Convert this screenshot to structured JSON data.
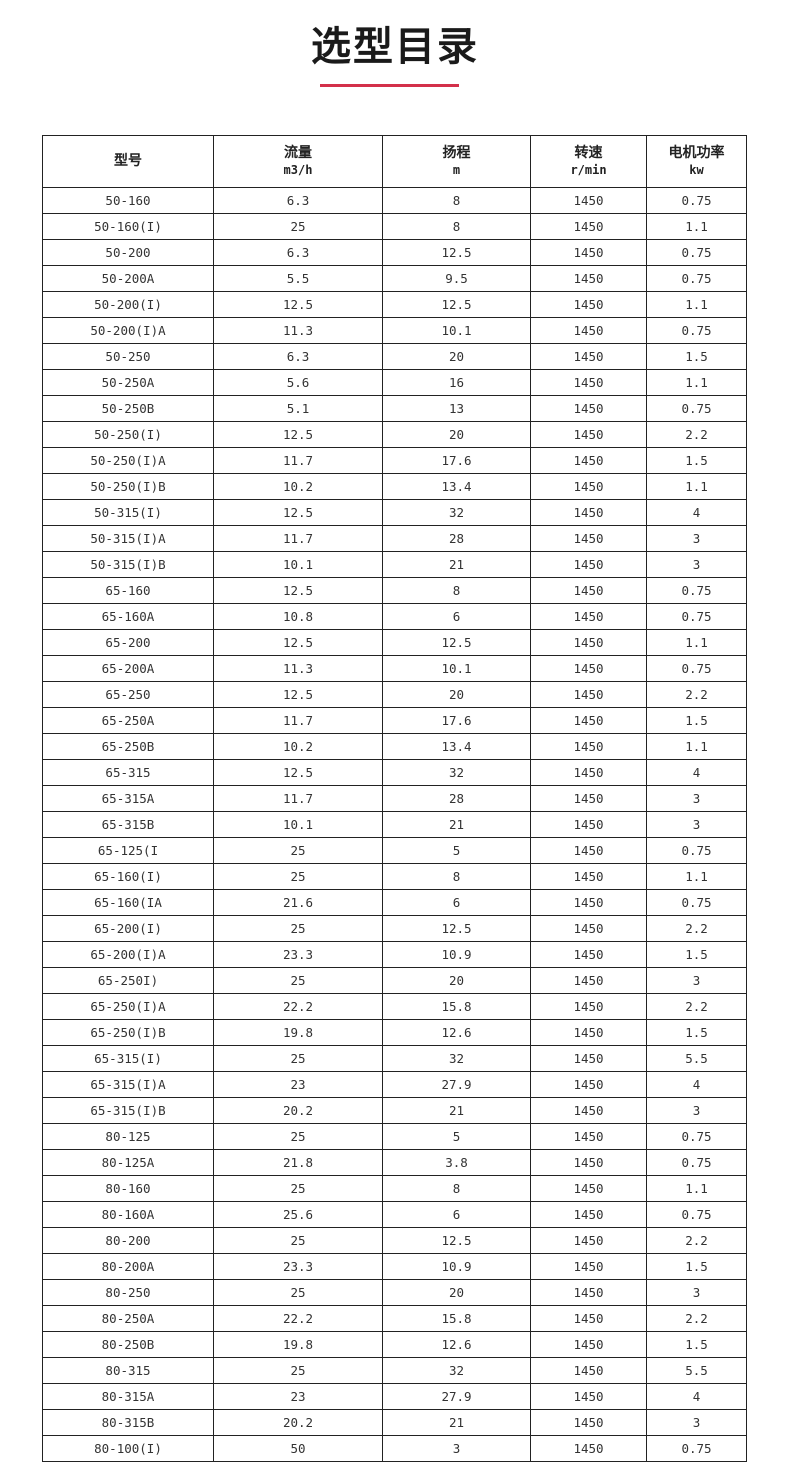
{
  "page": {
    "title": "选型目录",
    "accent_color": "#d3304a"
  },
  "table": {
    "headers": [
      {
        "label": "型号",
        "unit": ""
      },
      {
        "label": "流量",
        "unit": "m3/h"
      },
      {
        "label": "扬程",
        "unit": "m"
      },
      {
        "label": "转速",
        "unit": "r/min"
      },
      {
        "label": "电机功率",
        "unit": "kw"
      }
    ],
    "rows": [
      [
        "50-160",
        "6.3",
        "8",
        "1450",
        "0.75"
      ],
      [
        "50-160(I)",
        "25",
        "8",
        "1450",
        "1.1"
      ],
      [
        "50-200",
        "6.3",
        "12.5",
        "1450",
        "0.75"
      ],
      [
        "50-200A",
        "5.5",
        "9.5",
        "1450",
        "0.75"
      ],
      [
        "50-200(I)",
        "12.5",
        "12.5",
        "1450",
        "1.1"
      ],
      [
        "50-200(I)A",
        "11.3",
        "10.1",
        "1450",
        "0.75"
      ],
      [
        "50-250",
        "6.3",
        "20",
        "1450",
        "1.5"
      ],
      [
        "50-250A",
        "5.6",
        "16",
        "1450",
        "1.1"
      ],
      [
        "50-250B",
        "5.1",
        "13",
        "1450",
        "0.75"
      ],
      [
        "50-250(I)",
        "12.5",
        "20",
        "1450",
        "2.2"
      ],
      [
        "50-250(I)A",
        "11.7",
        "17.6",
        "1450",
        "1.5"
      ],
      [
        "50-250(I)B",
        "10.2",
        "13.4",
        "1450",
        "1.1"
      ],
      [
        "50-315(I)",
        "12.5",
        "32",
        "1450",
        "4"
      ],
      [
        "50-315(I)A",
        "11.7",
        "28",
        "1450",
        "3"
      ],
      [
        "50-315(I)B",
        "10.1",
        "21",
        "1450",
        "3"
      ],
      [
        "65-160",
        "12.5",
        "8",
        "1450",
        "0.75"
      ],
      [
        "65-160A",
        "10.8",
        "6",
        "1450",
        "0.75"
      ],
      [
        "65-200",
        "12.5",
        "12.5",
        "1450",
        "1.1"
      ],
      [
        "65-200A",
        "11.3",
        "10.1",
        "1450",
        "0.75"
      ],
      [
        "65-250",
        "12.5",
        "20",
        "1450",
        "2.2"
      ],
      [
        "65-250A",
        "11.7",
        "17.6",
        "1450",
        "1.5"
      ],
      [
        "65-250B",
        "10.2",
        "13.4",
        "1450",
        "1.1"
      ],
      [
        "65-315",
        "12.5",
        "32",
        "1450",
        "4"
      ],
      [
        "65-315A",
        "11.7",
        "28",
        "1450",
        "3"
      ],
      [
        "65-315B",
        "10.1",
        "21",
        "1450",
        "3"
      ],
      [
        "65-125(I",
        "25",
        "5",
        "1450",
        "0.75"
      ],
      [
        "65-160(I)",
        "25",
        "8",
        "1450",
        "1.1"
      ],
      [
        "65-160(IA",
        "21.6",
        "6",
        "1450",
        "0.75"
      ],
      [
        "65-200(I)",
        "25",
        "12.5",
        "1450",
        "2.2"
      ],
      [
        "65-200(I)A",
        "23.3",
        "10.9",
        "1450",
        "1.5"
      ],
      [
        "65-250I)",
        "25",
        "20",
        "1450",
        "3"
      ],
      [
        "65-250(I)A",
        "22.2",
        "15.8",
        "1450",
        "2.2"
      ],
      [
        "65-250(I)B",
        "19.8",
        "12.6",
        "1450",
        "1.5"
      ],
      [
        "65-315(I)",
        "25",
        "32",
        "1450",
        "5.5"
      ],
      [
        "65-315(I)A",
        "23",
        "27.9",
        "1450",
        "4"
      ],
      [
        "65-315(I)B",
        "20.2",
        "21",
        "1450",
        "3"
      ],
      [
        "80-125",
        "25",
        "5",
        "1450",
        "0.75"
      ],
      [
        "80-125A",
        "21.8",
        "3.8",
        "1450",
        "0.75"
      ],
      [
        "80-160",
        "25",
        "8",
        "1450",
        "1.1"
      ],
      [
        "80-160A",
        "25.6",
        "6",
        "1450",
        "0.75"
      ],
      [
        "80-200",
        "25",
        "12.5",
        "1450",
        "2.2"
      ],
      [
        "80-200A",
        "23.3",
        "10.9",
        "1450",
        "1.5"
      ],
      [
        "80-250",
        "25",
        "20",
        "1450",
        "3"
      ],
      [
        "80-250A",
        "22.2",
        "15.8",
        "1450",
        "2.2"
      ],
      [
        "80-250B",
        "19.8",
        "12.6",
        "1450",
        "1.5"
      ],
      [
        "80-315",
        "25",
        "32",
        "1450",
        "5.5"
      ],
      [
        "80-315A",
        "23",
        "27.9",
        "1450",
        "4"
      ],
      [
        "80-315B",
        "20.2",
        "21",
        "1450",
        "3"
      ],
      [
        "80-100(I)",
        "50",
        "3",
        "1450",
        "0.75"
      ]
    ]
  }
}
